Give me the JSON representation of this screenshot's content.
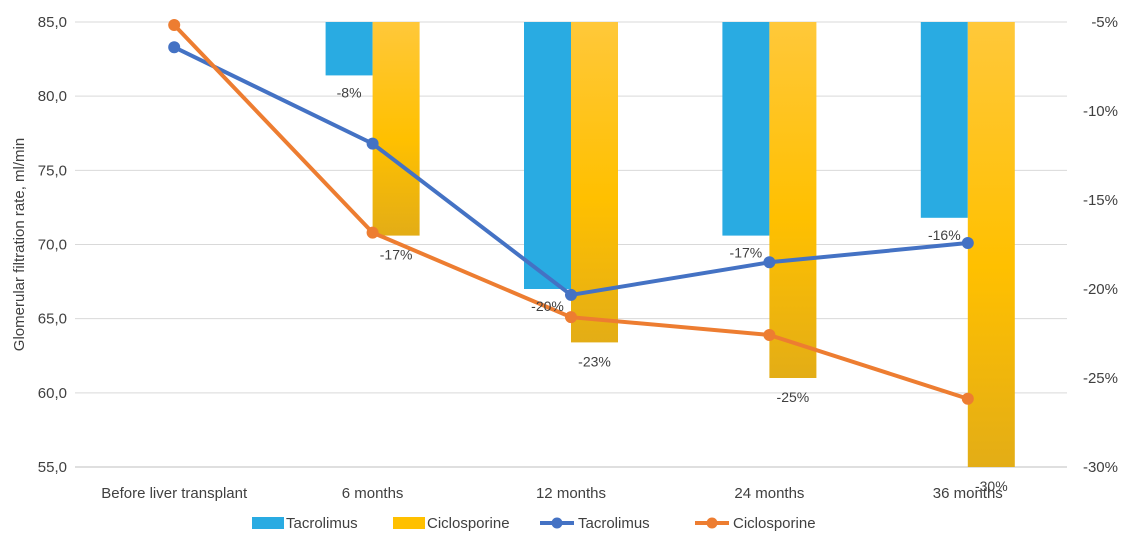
{
  "chart_data": {
    "type": "bar+line",
    "categories": [
      "Before liver transplant",
      "6 months",
      "12 months",
      "24 months",
      "36 months"
    ],
    "ylabel": "Glomerular filtration rate, ml/min",
    "ylim": [
      55,
      85
    ],
    "y_ticks": [
      "85,0",
      "80,0",
      "75,0",
      "70,0",
      "65,0",
      "60,0",
      "55,0"
    ],
    "y2lim": [
      -30,
      -5
    ],
    "y2_ticks": [
      "-5%",
      "-10%",
      "-15%",
      "-20%",
      "-25%",
      "-30%"
    ],
    "grid": true,
    "legend_position": "bottom",
    "bar_series": [
      {
        "name": "Tacrolimus",
        "color": "#29abe2",
        "values": [
          null,
          -8,
          -20,
          -17,
          -16
        ],
        "labels": [
          "",
          "-8%",
          "-20%",
          "-17%",
          "-16%"
        ]
      },
      {
        "name": "Ciclosporine",
        "color": "#ffc000",
        "values": [
          null,
          -17,
          -23,
          -25,
          -30
        ],
        "labels": [
          "",
          "-17%",
          "-23%",
          "-25%",
          "-30%"
        ]
      }
    ],
    "line_series": [
      {
        "name": "Tacrolimus",
        "color": "#4472c4",
        "values": [
          83.3,
          76.8,
          66.6,
          68.8,
          70.1
        ]
      },
      {
        "name": "Ciclosporine",
        "color": "#ed7d31",
        "values": [
          84.8,
          70.8,
          65.1,
          63.9,
          59.6
        ]
      }
    ]
  }
}
